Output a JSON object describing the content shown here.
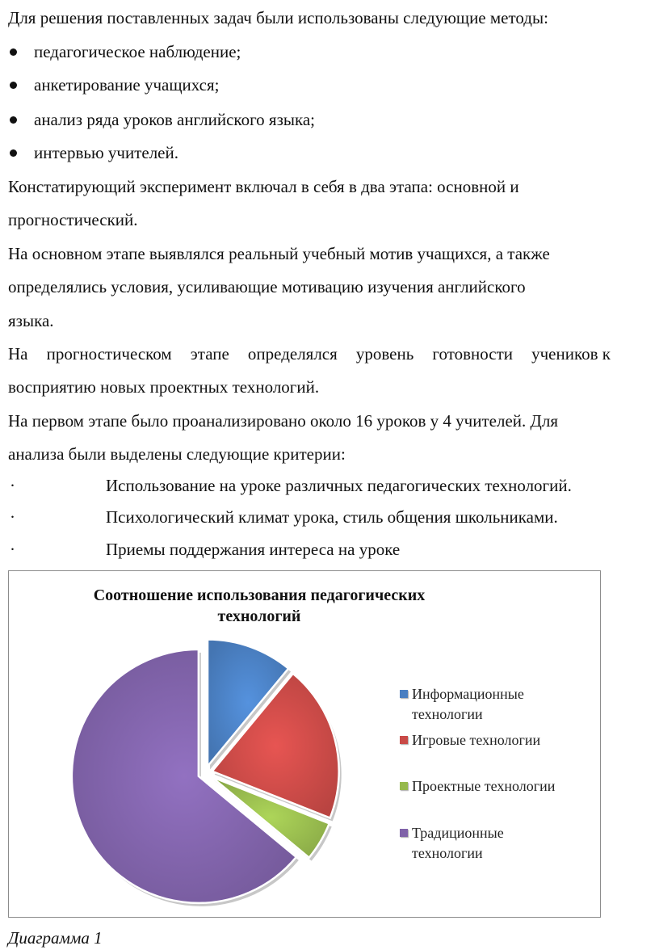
{
  "paragraphs": {
    "intro": "Для решения поставленных задач были использованы следующие методы:",
    "methods": [
      "педагогическое наблюдение;",
      "анкетирование учащихся;",
      "анализ ряда уроков английского языка;",
      "интервью учителей."
    ],
    "p1_line1": "Констатирующий эксперимент включал в себя в два этапа: основной и",
    "p1_line2": "прогностический.",
    "p2_line1": "На основном этапе выявлялся реальный учебный мотив учащихся, а также",
    "p2_line2": "определялись условия, усиливающие мотивацию изучения английского",
    "p2_line3": "языка.",
    "p3_line1_words": [
      "На",
      "прогностическом",
      "этапе",
      "определялся",
      "уровень",
      "готовности",
      "учеников к"
    ],
    "p3_line2": "восприятию новых проектных технологий.",
    "p4_line1": "На первом этапе было проанализировано около 16 уроков у 4 учителей. Для",
    "p4_line2": "анализа были выделены следующие критерии:",
    "criteria_marker": "·",
    "criteria": [
      "Использование  на уроке различных педагогических технологий.",
      "Психологический климат урока, стиль общения школьниками.",
      " Приемы поддержания интереса на уроке"
    ]
  },
  "chart_data": {
    "type": "pie",
    "title": "Соотношение использования педагогических технологий",
    "title_lines": [
      "Соотношение использования педагогических",
      "технологий"
    ],
    "categories": [
      "Информационные технологии",
      "Игровые технологии",
      "Проектные технологии",
      "Традиционные технологии"
    ],
    "legend_lines": [
      [
        "Информационные",
        "технологии"
      ],
      [
        "Игровые технологии"
      ],
      [
        "Проектные технологии"
      ],
      [
        "Традиционные",
        "технологии"
      ]
    ],
    "values": [
      11,
      20,
      5,
      64
    ],
    "colors": [
      "#4a7fc1",
      "#c94a47",
      "#96b94d",
      "#7f62a8"
    ],
    "exploded": true,
    "legend_position": "right"
  },
  "caption": "Диаграмма 1"
}
